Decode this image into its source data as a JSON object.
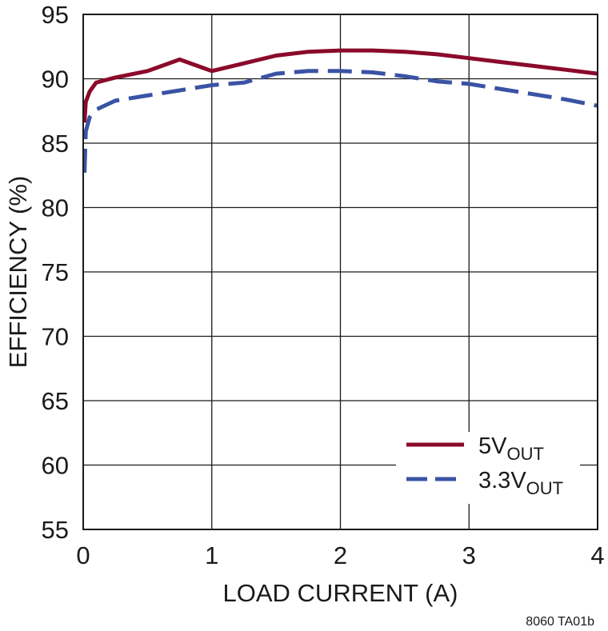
{
  "chart_data": {
    "type": "line",
    "title": "",
    "xlabel": "LOAD CURRENT (A)",
    "ylabel": "EFFICIENCY (%)",
    "xlim": [
      0,
      4
    ],
    "ylim": [
      55,
      95
    ],
    "xticks": [
      "0",
      "1",
      "2",
      "3",
      "4"
    ],
    "yticks": [
      "95",
      "90",
      "85",
      "80",
      "75",
      "70",
      "65",
      "60",
      "55"
    ],
    "grid": true,
    "legend_position": "bottom-right",
    "series": [
      {
        "name": "5V",
        "name_sub": "OUT",
        "color": "#8b0a2b",
        "dash": "solid",
        "points": [
          [
            0.01,
            86.6
          ],
          [
            0.02,
            88.2
          ],
          [
            0.05,
            89.0
          ],
          [
            0.1,
            89.7
          ],
          [
            0.25,
            90.1
          ],
          [
            0.5,
            90.6
          ],
          [
            0.75,
            91.5
          ],
          [
            1.0,
            90.6
          ],
          [
            1.25,
            91.2
          ],
          [
            1.5,
            91.8
          ],
          [
            1.75,
            92.1
          ],
          [
            2.0,
            92.2
          ],
          [
            2.25,
            92.2
          ],
          [
            2.5,
            92.1
          ],
          [
            2.75,
            91.9
          ],
          [
            3.0,
            91.6
          ],
          [
            3.25,
            91.3
          ],
          [
            3.5,
            91.0
          ],
          [
            3.75,
            90.7
          ],
          [
            4.0,
            90.4
          ]
        ]
      },
      {
        "name": "3.3V",
        "name_sub": "OUT",
        "color": "#3a53a4",
        "dash": "dashed",
        "points": [
          [
            0.01,
            82.7
          ],
          [
            0.02,
            85.9
          ],
          [
            0.05,
            87.0
          ],
          [
            0.1,
            87.6
          ],
          [
            0.25,
            88.3
          ],
          [
            0.5,
            88.7
          ],
          [
            0.75,
            89.1
          ],
          [
            1.0,
            89.5
          ],
          [
            1.25,
            89.7
          ],
          [
            1.5,
            90.4
          ],
          [
            1.75,
            90.6
          ],
          [
            2.0,
            90.6
          ],
          [
            2.25,
            90.5
          ],
          [
            2.5,
            90.2
          ],
          [
            2.75,
            89.8
          ],
          [
            3.0,
            89.6
          ],
          [
            3.25,
            89.2
          ],
          [
            3.5,
            88.8
          ],
          [
            3.75,
            88.4
          ],
          [
            4.0,
            87.9
          ]
        ]
      }
    ],
    "figure_id": "8060 TA01b"
  }
}
